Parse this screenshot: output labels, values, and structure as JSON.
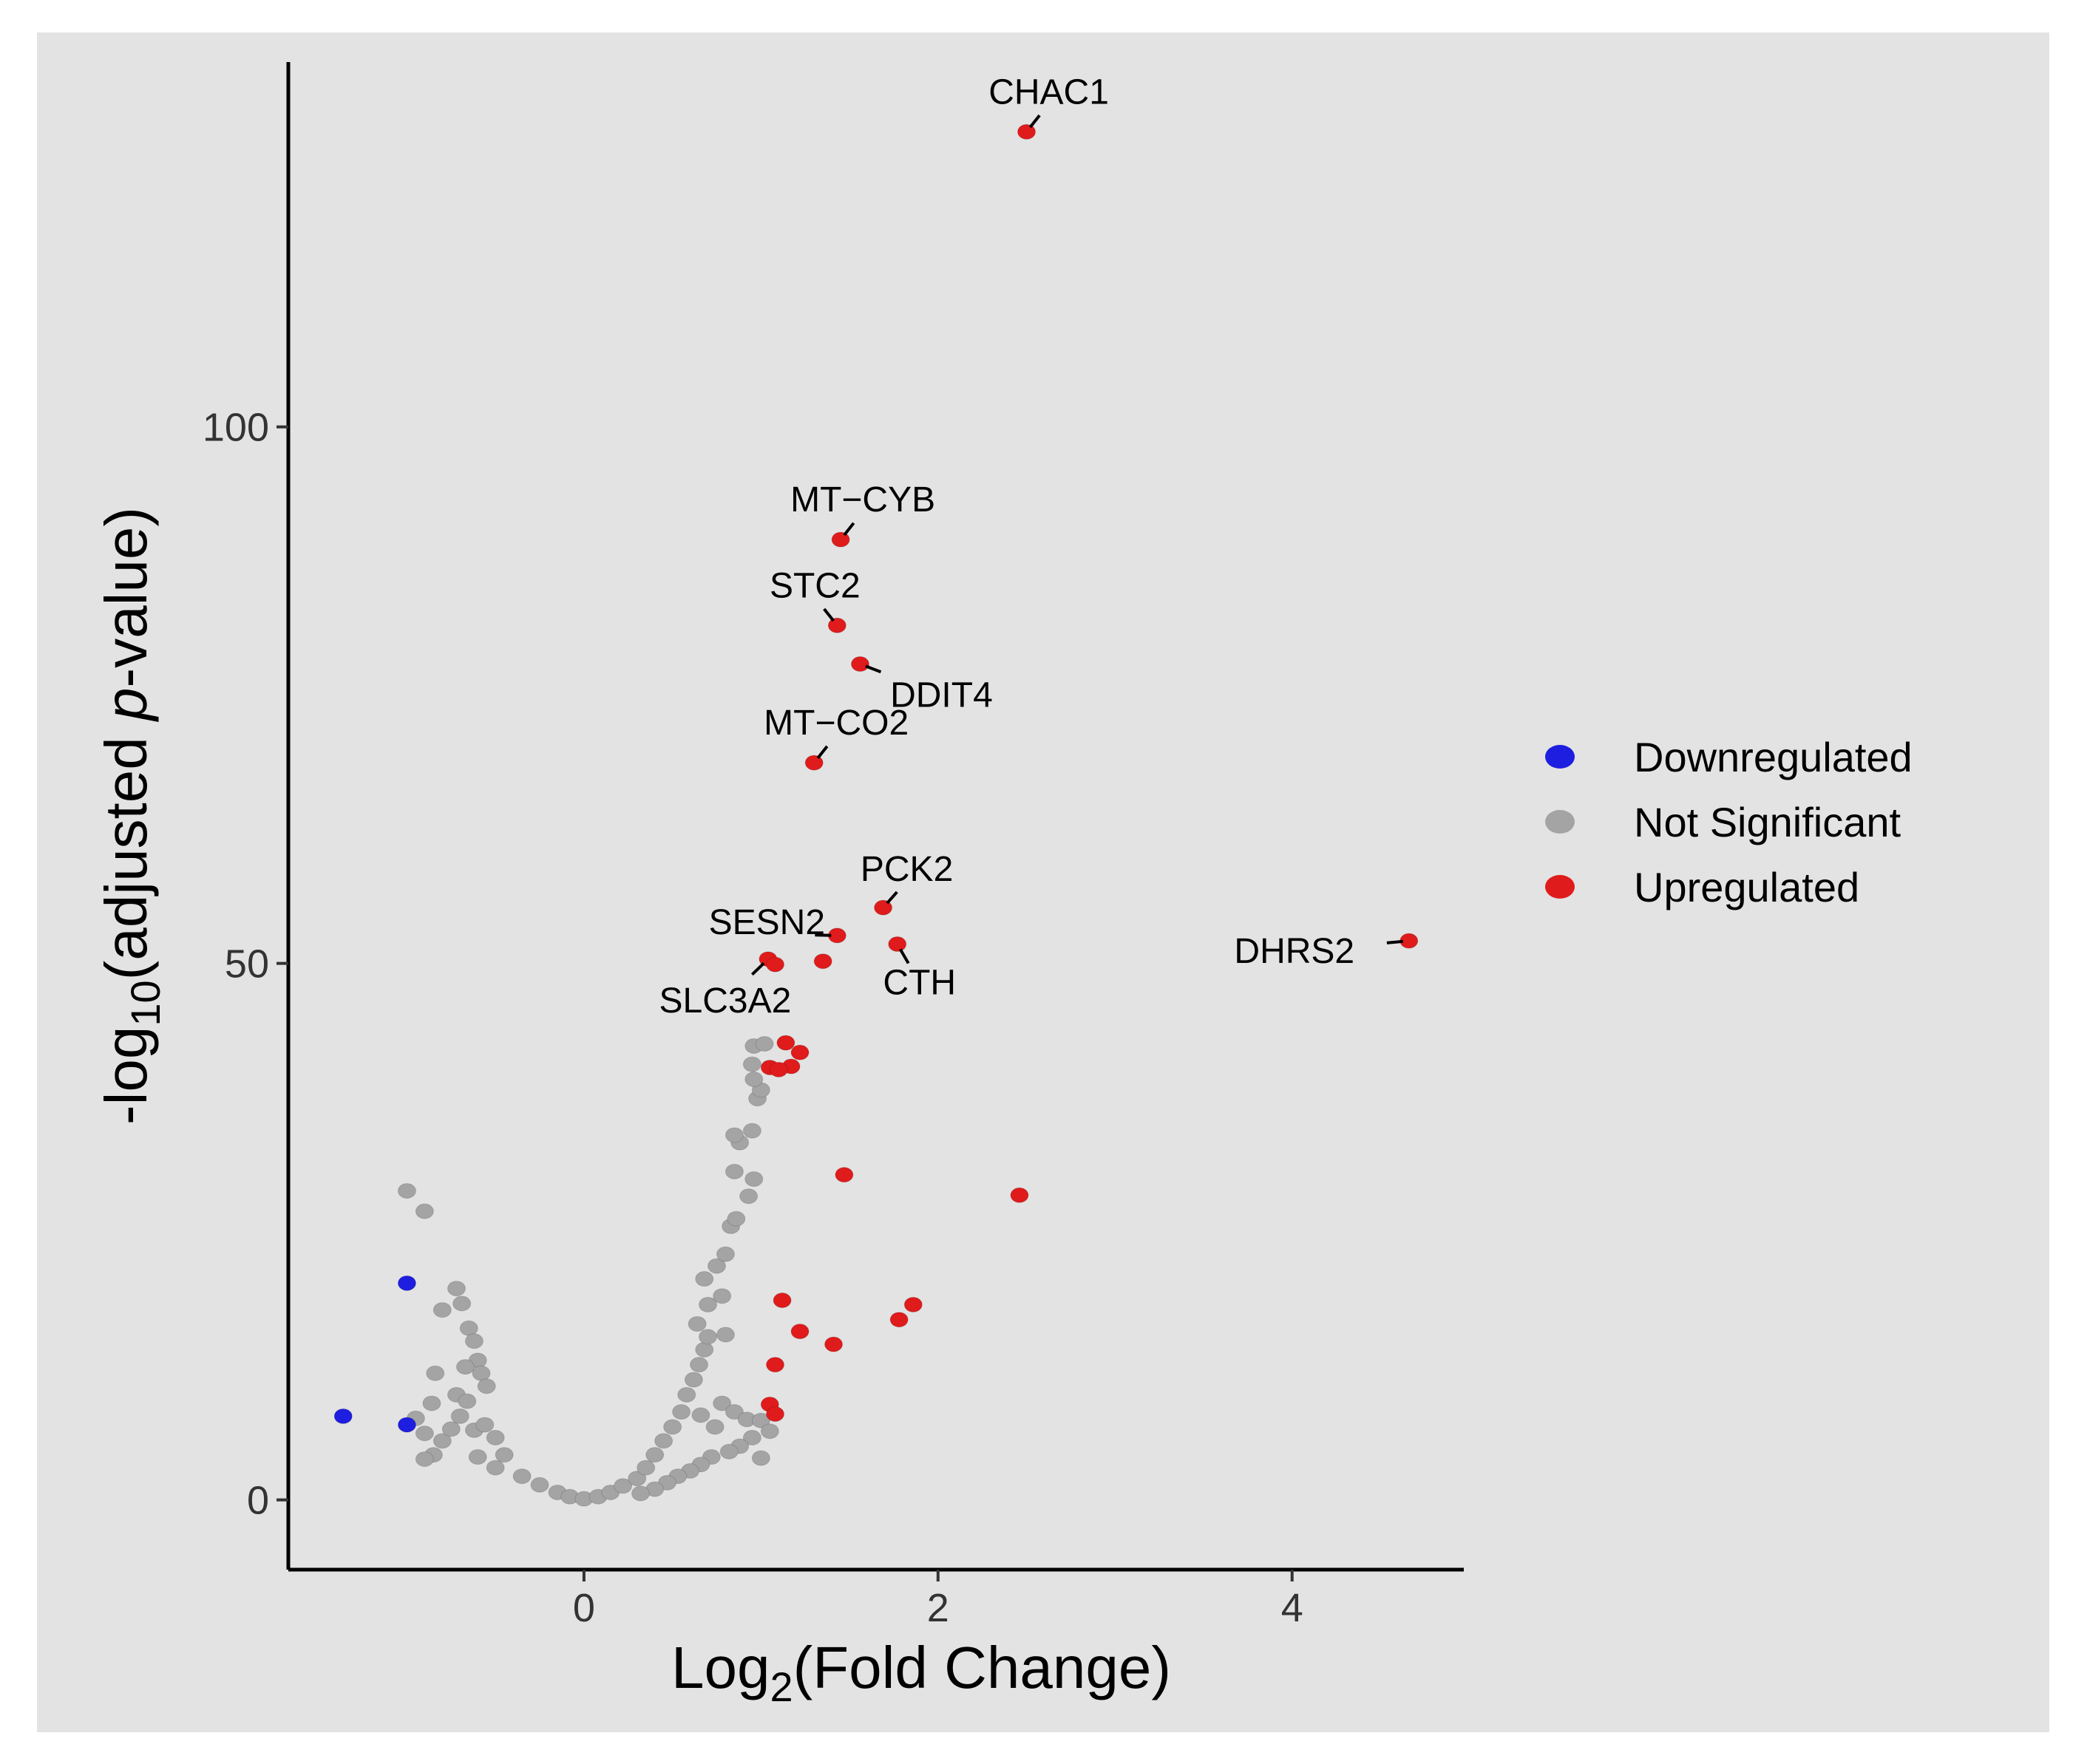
{
  "chart_data": {
    "type": "scatter",
    "title": "",
    "xlabel_prefix": "Log",
    "xlabel_sub": "2",
    "xlabel_suffix": "(Fold Change)",
    "ylabel_prefix": "-log",
    "ylabel_sub": "10",
    "ylabel_mid": "(adjusted ",
    "ylabel_italic": "p",
    "ylabel_suffix": "-value)",
    "xlim": [
      -1.67,
      4.97
    ],
    "ylim": [
      -6.5,
      134
    ],
    "x_ticks": [
      0,
      2,
      4
    ],
    "x_tick_labels": [
      "0",
      "2",
      "4"
    ],
    "y_ticks": [
      0,
      50,
      100
    ],
    "y_tick_labels": [
      "0",
      "50",
      "100"
    ],
    "legend_position": "right",
    "colors": {
      "Downregulated": "#1e1ee0",
      "Not Significant": "#a4a4a4",
      "Upregulated": "#e01b1b"
    },
    "legend": [
      {
        "name": "Downregulated",
        "color": "#1e1ee0"
      },
      {
        "name": "Not Significant",
        "color": "#a4a4a4"
      },
      {
        "name": "Upregulated",
        "color": "#e01b1b"
      }
    ],
    "series": [
      {
        "name": "Downregulated",
        "points": [
          [
            -1.36,
            7.8
          ],
          [
            -1.0,
            7.0
          ],
          [
            -1.0,
            20.2
          ]
        ]
      },
      {
        "name": "Not Significant",
        "points": [
          [
            -1.0,
            28.8
          ],
          [
            -0.9,
            26.9
          ],
          [
            -0.72,
            19.7
          ],
          [
            -0.69,
            18.3
          ],
          [
            -0.8,
            17.7
          ],
          [
            -0.65,
            16.0
          ],
          [
            -0.62,
            14.8
          ],
          [
            -0.6,
            13.0
          ],
          [
            -0.67,
            12.4
          ],
          [
            -0.84,
            11.8
          ],
          [
            -0.58,
            11.8
          ],
          [
            -0.55,
            10.6
          ],
          [
            -0.72,
            9.8
          ],
          [
            -0.66,
            9.2
          ],
          [
            -0.86,
            9.0
          ],
          [
            -0.95,
            7.6
          ],
          [
            -0.9,
            6.2
          ],
          [
            -0.8,
            5.5
          ],
          [
            -0.75,
            6.6
          ],
          [
            -0.7,
            7.8
          ],
          [
            -0.62,
            6.5
          ],
          [
            -0.56,
            7.0
          ],
          [
            -0.5,
            5.8
          ],
          [
            -0.45,
            4.2
          ],
          [
            -0.85,
            4.2
          ],
          [
            -0.9,
            3.8
          ],
          [
            -0.6,
            4.0
          ],
          [
            -0.5,
            3.0
          ],
          [
            -0.35,
            2.2
          ],
          [
            -0.25,
            1.4
          ],
          [
            -0.15,
            0.7
          ],
          [
            -0.08,
            0.3
          ],
          [
            0.0,
            0.1
          ],
          [
            0.08,
            0.3
          ],
          [
            0.15,
            0.7
          ],
          [
            0.22,
            1.3
          ],
          [
            0.3,
            2.0
          ],
          [
            0.35,
            3.0
          ],
          [
            0.4,
            4.2
          ],
          [
            0.45,
            5.5
          ],
          [
            0.5,
            6.8
          ],
          [
            0.55,
            8.2
          ],
          [
            0.58,
            9.8
          ],
          [
            0.62,
            11.2
          ],
          [
            0.65,
            12.6
          ],
          [
            0.68,
            14.0
          ],
          [
            0.7,
            15.2
          ],
          [
            0.64,
            16.4
          ],
          [
            0.8,
            15.4
          ],
          [
            0.7,
            18.2
          ],
          [
            0.68,
            20.6
          ],
          [
            0.78,
            19.0
          ],
          [
            0.75,
            21.8
          ],
          [
            0.8,
            22.9
          ],
          [
            0.83,
            25.5
          ],
          [
            0.86,
            26.2
          ],
          [
            0.93,
            28.3
          ],
          [
            0.96,
            29.9
          ],
          [
            0.85,
            30.6
          ],
          [
            0.88,
            33.3
          ],
          [
            0.95,
            34.4
          ],
          [
            0.85,
            34.0
          ],
          [
            0.98,
            37.4
          ],
          [
            1.0,
            38.2
          ],
          [
            0.95,
            40.6
          ],
          [
            0.96,
            42.3
          ],
          [
            1.02,
            42.5
          ],
          [
            0.96,
            39.2
          ],
          [
            0.78,
            9.0
          ],
          [
            0.85,
            8.2
          ],
          [
            0.92,
            7.5
          ],
          [
            1.0,
            7.4
          ],
          [
            1.05,
            6.4
          ],
          [
            0.95,
            5.8
          ],
          [
            0.88,
            5.0
          ],
          [
            0.82,
            4.5
          ],
          [
            0.72,
            4.0
          ],
          [
            0.66,
            3.3
          ],
          [
            0.6,
            2.7
          ],
          [
            0.53,
            2.2
          ],
          [
            0.47,
            1.6
          ],
          [
            0.4,
            1.0
          ],
          [
            0.32,
            0.6
          ],
          [
            1.0,
            3.9
          ],
          [
            0.74,
            6.8
          ],
          [
            0.66,
            7.9
          ]
        ]
      },
      {
        "name": "Upregulated",
        "points": [
          [
            2.5,
            127.5
          ],
          [
            1.45,
            89.5
          ],
          [
            1.43,
            81.5
          ],
          [
            1.56,
            77.9
          ],
          [
            1.3,
            68.7
          ],
          [
            1.69,
            55.2
          ],
          [
            1.43,
            52.6
          ],
          [
            1.77,
            51.8
          ],
          [
            4.66,
            52.1
          ],
          [
            1.35,
            50.2
          ],
          [
            1.04,
            50.4
          ],
          [
            1.08,
            49.9
          ],
          [
            1.14,
            42.6
          ],
          [
            1.22,
            41.7
          ],
          [
            1.17,
            40.4
          ],
          [
            1.05,
            40.3
          ],
          [
            1.1,
            40.1
          ],
          [
            1.47,
            30.3
          ],
          [
            2.46,
            28.4
          ],
          [
            1.12,
            18.6
          ],
          [
            1.86,
            18.2
          ],
          [
            1.78,
            16.8
          ],
          [
            1.22,
            15.7
          ],
          [
            1.41,
            14.5
          ],
          [
            1.08,
            12.6
          ],
          [
            1.05,
            8.9
          ],
          [
            1.08,
            8.0
          ]
        ]
      }
    ],
    "labels": [
      {
        "text": "CHAC1",
        "point": [
          2.5,
          127.5
        ]
      },
      {
        "text": "MT−CYB",
        "point": [
          1.45,
          89.5
        ]
      },
      {
        "text": "STC2",
        "point": [
          1.43,
          81.5
        ]
      },
      {
        "text": "DDIT4",
        "point": [
          1.56,
          77.9
        ]
      },
      {
        "text": "MT−CO2",
        "point": [
          1.3,
          68.7
        ]
      },
      {
        "text": "PCK2",
        "point": [
          1.69,
          55.2
        ]
      },
      {
        "text": "SESN2",
        "point": [
          1.43,
          52.6
        ]
      },
      {
        "text": "CTH",
        "point": [
          1.77,
          51.8
        ]
      },
      {
        "text": "DHRS2",
        "point": [
          4.66,
          52.1
        ]
      },
      {
        "text": "SLC3A2",
        "point": [
          1.04,
          50.4
        ]
      }
    ]
  }
}
